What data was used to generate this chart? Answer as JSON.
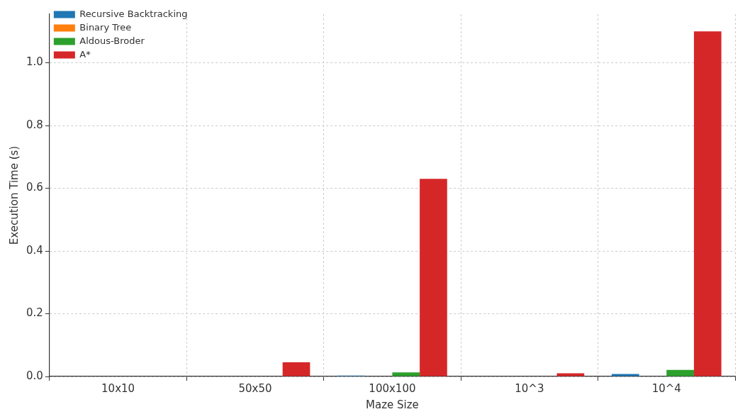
{
  "chart_data": {
    "type": "bar",
    "xlabel": "Maze Size",
    "ylabel": "Execution Time (s)",
    "categories": [
      "10x10",
      "50x50",
      "100x100",
      "10^3",
      "10^4"
    ],
    "series": [
      {
        "name": "Recursive Backtracking",
        "color": "#1f77b4",
        "values": [
          0,
          0,
          0.003,
          0,
          0.008
        ]
      },
      {
        "name": "Binary Tree",
        "color": "#ff7f0e",
        "values": [
          0,
          0,
          0,
          0,
          0
        ]
      },
      {
        "name": "Aldous-Broder",
        "color": "#2ca02c",
        "values": [
          0,
          0,
          0.013,
          0,
          0.021
        ]
      },
      {
        "name": "A*",
        "color": "#d62728",
        "values": [
          0,
          0.045,
          0.63,
          0.01,
          1.1
        ]
      }
    ],
    "ylim": [
      0,
      1.155
    ],
    "yticks": [
      {
        "value": 0,
        "label": "0.0"
      },
      0.2,
      0.4,
      0.6,
      0.8,
      {
        "value": 1,
        "label": "1.0"
      }
    ],
    "grid": true,
    "legend": "top left"
  }
}
